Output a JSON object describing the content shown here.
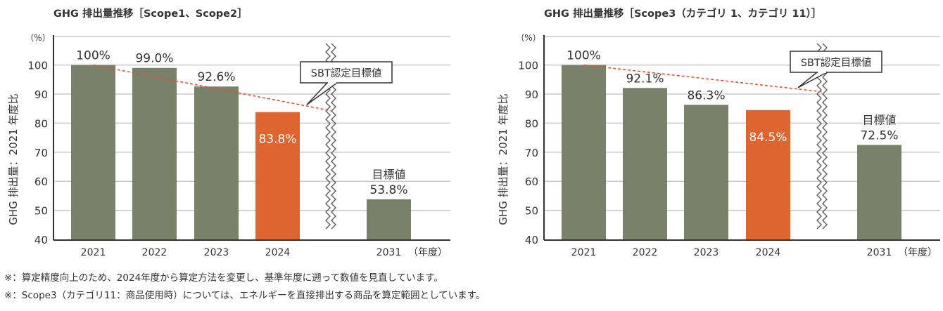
{
  "colors": {
    "bar": "#7a816b",
    "highlight": "#de6430",
    "target_line": "#e0522a",
    "grid": "#c8c8c8",
    "axis": "#333333"
  },
  "chart_data": [
    {
      "type": "bar",
      "title": "GHG 排出量推移［Scope1、Scope2］",
      "ylabel": "GHG 排出量：2021 年度比",
      "yunit": "（%）",
      "xunit": "（年度）",
      "ylim": [
        40,
        110
      ],
      "yticks": [
        40,
        50,
        60,
        70,
        80,
        90,
        100
      ],
      "grid": true,
      "axis_break": "between 2024 and 2031",
      "categories": [
        "2021",
        "2022",
        "2023",
        "2024",
        "2031"
      ],
      "values": [
        100,
        99.0,
        92.6,
        83.8,
        53.8
      ],
      "labels": [
        "100%",
        "99.0%",
        "92.6%",
        "83.8%",
        "53.8%"
      ],
      "highlight_index": 3,
      "target_label": "目標値",
      "target_line": {
        "label": "SBT認定目標値",
        "from": [
          "2021",
          100
        ],
        "to": [
          "break",
          84.3
        ]
      }
    },
    {
      "type": "bar",
      "title": "GHG 排出量推移［Scope3（カテゴリ 1、カテゴリ 11）］",
      "ylabel": "GHG 排出量：2021 年度比",
      "yunit": "（%）",
      "xunit": "（年度）",
      "ylim": [
        40,
        110
      ],
      "yticks": [
        40,
        50,
        60,
        70,
        80,
        90,
        100
      ],
      "grid": true,
      "axis_break": "between 2024 and 2031",
      "categories": [
        "2021",
        "2022",
        "2023",
        "2024",
        "2031"
      ],
      "values": [
        100,
        92.1,
        86.3,
        84.5,
        72.5
      ],
      "labels": [
        "100%",
        "92.1%",
        "86.3%",
        "84.5%",
        "72.5%"
      ],
      "highlight_index": 3,
      "target_label": "目標値",
      "target_line": {
        "label": "SBT認定目標値",
        "from": [
          "2021",
          100
        ],
        "to": [
          "break",
          90.8
        ]
      }
    }
  ],
  "notes": [
    "※：算定精度向上のため、2024年度から算定方法を変更し、基準年度に遡って数値を見直しています。",
    "※：Scope3（カテゴリ11：商品使用時）については、エネルギーを直接排出する商品を算定範囲としています。"
  ]
}
